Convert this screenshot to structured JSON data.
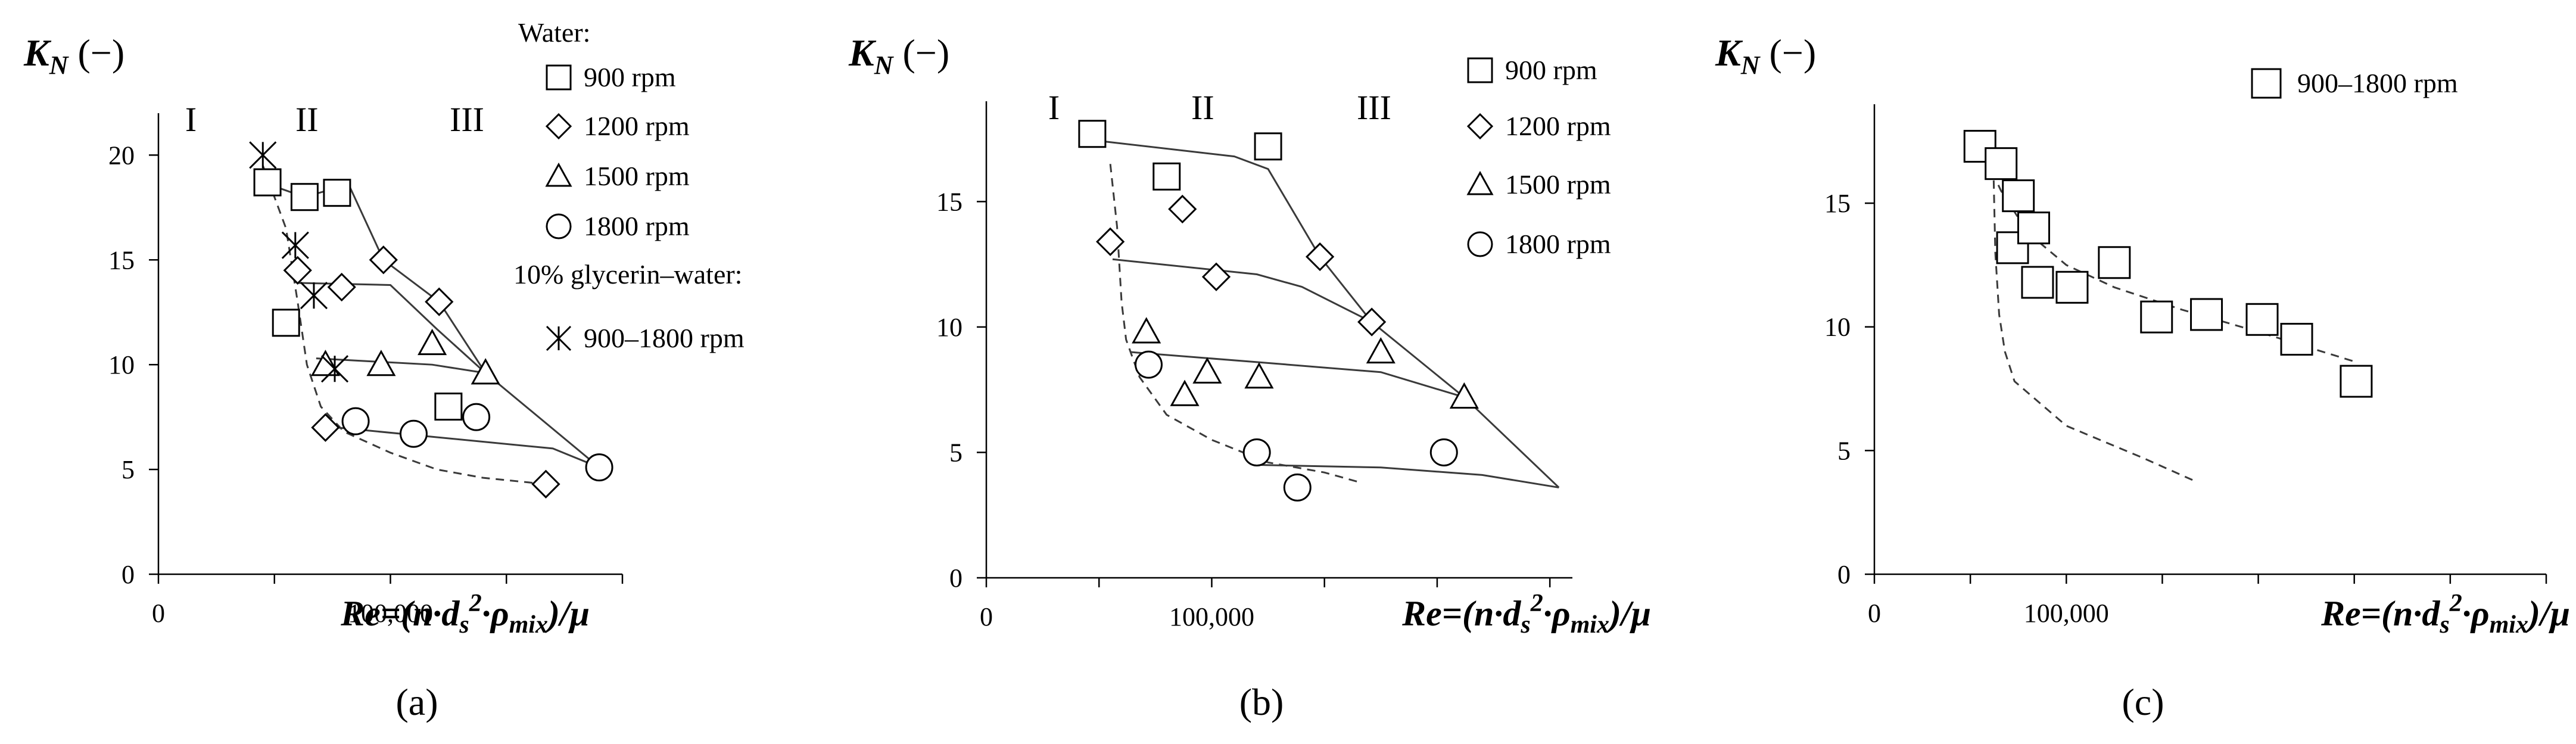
{
  "figure": {
    "panel_labels": [
      "(a)",
      "(b)",
      "(c)"
    ],
    "y_label": "K",
    "y_label_subscript": "N",
    "y_label_unit": " (−)",
    "x_label_parts": [
      "Re=(n·d",
      "s",
      "2",
      "·ρ",
      "mix",
      ")/μ"
    ]
  },
  "chart_data": [
    {
      "type": "scatter",
      "title": "",
      "xlim": [
        0,
        200000
      ],
      "ylim": [
        0,
        22
      ],
      "x_tick_labels": [
        {
          "value": 0,
          "label": "0"
        },
        {
          "value": 100000,
          "label": "100,000"
        }
      ],
      "y_tick_labels": [
        {
          "value": 0,
          "label": "0"
        },
        {
          "value": 5,
          "label": "5"
        },
        {
          "value": 10,
          "label": "10"
        },
        {
          "value": 15,
          "label": "15"
        },
        {
          "value": 20,
          "label": "20"
        }
      ],
      "x_ticks_minor": [
        0,
        50000,
        100000,
        150000,
        200000
      ],
      "zones": [
        {
          "label": "I",
          "x": 14000,
          "y": 22
        },
        {
          "label": "II",
          "x": 64000,
          "y": 22
        },
        {
          "label": "III",
          "x": 133000,
          "y": 22
        }
      ],
      "legend_header_1": "Water:",
      "legend_header_2": "10% glycerin–water:",
      "series": [
        {
          "name": "900 rpm",
          "marker": "square",
          "points": [
            [
              47000,
              18.7
            ],
            [
              63000,
              18.0
            ],
            [
              77000,
              18.2
            ],
            [
              55000,
              12.0
            ],
            [
              125000,
              8.0
            ]
          ]
        },
        {
          "name": "1200 rpm",
          "marker": "diamond",
          "points": [
            [
              60000,
              14.5
            ],
            [
              79000,
              13.7
            ],
            [
              97000,
              15.0
            ],
            [
              121000,
              13.0
            ],
            [
              72000,
              7.0
            ],
            [
              167000,
              4.3
            ]
          ]
        },
        {
          "name": "1500 rpm",
          "marker": "triangle",
          "points": [
            [
              72000,
              10.0
            ],
            [
              96000,
              10.0
            ],
            [
              118000,
              11.0
            ],
            [
              141000,
              9.6
            ]
          ]
        },
        {
          "name": "1800 rpm",
          "marker": "circle",
          "points": [
            [
              85000,
              7.3
            ],
            [
              110000,
              6.7
            ],
            [
              137000,
              7.5
            ],
            [
              190000,
              5.1
            ]
          ]
        },
        {
          "name": "900–1800 rpm",
          "marker": "asterisk",
          "points": [
            [
              45000,
              20.0
            ],
            [
              59000,
              15.7
            ],
            [
              67000,
              13.3
            ],
            [
              76000,
              9.8
            ]
          ]
        }
      ],
      "fit_lines": [
        {
          "style": "solid",
          "points": [
            [
              45000,
              18.7
            ],
            [
              63000,
              18.0
            ],
            [
              82000,
              18.6
            ],
            [
              97000,
              15.0
            ],
            [
              121000,
              13.0
            ],
            [
              141000,
              9.6
            ],
            [
              190000,
              5.1
            ]
          ]
        },
        {
          "style": "solid",
          "points": [
            [
              60000,
              13.9
            ],
            [
              100000,
              13.8
            ],
            [
              120000,
              11.7
            ],
            [
              141000,
              9.6
            ]
          ]
        },
        {
          "style": "solid",
          "points": [
            [
              68000,
              10.3
            ],
            [
              118000,
              10.0
            ],
            [
              141000,
              9.6
            ]
          ]
        },
        {
          "style": "solid",
          "points": [
            [
              77000,
              7.0
            ],
            [
              170000,
              6.0
            ],
            [
              190000,
              5.1
            ]
          ]
        },
        {
          "style": "dashed",
          "points": [
            [
              45000,
              19.5
            ],
            [
              55000,
              16.5
            ],
            [
              60000,
              13.0
            ],
            [
              64000,
              10.0
            ],
            [
              70000,
              8.0
            ],
            [
              80000,
              6.8
            ],
            [
              100000,
              5.8
            ],
            [
              120000,
              5.0
            ],
            [
              140000,
              4.6
            ],
            [
              167000,
              4.3
            ]
          ]
        }
      ]
    },
    {
      "type": "scatter",
      "title": "",
      "xlim": [
        0,
        260000
      ],
      "ylim": [
        0,
        19
      ],
      "x_tick_labels": [
        {
          "value": 0,
          "label": "0"
        },
        {
          "value": 100000,
          "label": "100,000"
        }
      ],
      "y_tick_labels": [
        {
          "value": 0,
          "label": "0"
        },
        {
          "value": 5,
          "label": "5"
        },
        {
          "value": 10,
          "label": "10"
        },
        {
          "value": 15,
          "label": "15"
        }
      ],
      "x_ticks_minor": [
        0,
        50000,
        100000,
        150000,
        200000,
        250000
      ],
      "zones": [
        {
          "label": "I",
          "x": 30000,
          "y": 19
        },
        {
          "label": "II",
          "x": 96000,
          "y": 19
        },
        {
          "label": "III",
          "x": 172000,
          "y": 19
        }
      ],
      "series": [
        {
          "name": "900 rpm",
          "marker": "square",
          "points": [
            [
              47000,
              17.7
            ],
            [
              80000,
              16.0
            ],
            [
              125000,
              17.2
            ]
          ]
        },
        {
          "name": "1200 rpm",
          "marker": "diamond",
          "points": [
            [
              55000,
              13.4
            ],
            [
              87000,
              14.7
            ],
            [
              102000,
              12.0
            ],
            [
              148000,
              12.8
            ],
            [
              171000,
              10.2
            ]
          ]
        },
        {
          "name": "1500 rpm",
          "marker": "triangle",
          "points": [
            [
              71000,
              9.8
            ],
            [
              98000,
              8.2
            ],
            [
              121000,
              8.0
            ],
            [
              175000,
              9.0
            ],
            [
              212000,
              7.2
            ],
            [
              88000,
              7.3
            ]
          ]
        },
        {
          "name": "1800 rpm",
          "marker": "circle",
          "points": [
            [
              72000,
              8.5
            ],
            [
              120000,
              5.0
            ],
            [
              138000,
              3.6
            ],
            [
              203000,
              5.0
            ]
          ]
        }
      ],
      "fit_lines": [
        {
          "style": "solid",
          "points": [
            [
              52000,
              17.4
            ],
            [
              110000,
              16.8
            ],
            [
              125000,
              16.3
            ],
            [
              148000,
              12.8
            ],
            [
              171000,
              10.2
            ],
            [
              212000,
              7.2
            ],
            [
              254000,
              3.6
            ]
          ]
        },
        {
          "style": "solid",
          "points": [
            [
              56000,
              12.7
            ],
            [
              120000,
              12.1
            ],
            [
              140000,
              11.6
            ],
            [
              171000,
              10.2
            ]
          ]
        },
        {
          "style": "solid",
          "points": [
            [
              64000,
              9.0
            ],
            [
              120000,
              8.6
            ],
            [
              175000,
              8.2
            ],
            [
              212000,
              7.2
            ]
          ]
        },
        {
          "style": "solid",
          "points": [
            [
              121000,
              4.5
            ],
            [
              175000,
              4.4
            ],
            [
              220000,
              4.1
            ],
            [
              254000,
              3.6
            ]
          ]
        },
        {
          "style": "dashed",
          "points": [
            [
              55000,
              16.5
            ],
            [
              58000,
              14.0
            ],
            [
              60000,
              11.0
            ],
            [
              62000,
              9.5
            ],
            [
              68000,
              8.0
            ],
            [
              80000,
              6.5
            ],
            [
              100000,
              5.5
            ],
            [
              125000,
              4.6
            ],
            [
              150000,
              4.2
            ],
            [
              166000,
              3.8
            ]
          ]
        }
      ]
    },
    {
      "type": "scatter",
      "title": "",
      "xlim": [
        0,
        350000
      ],
      "ylim": [
        0,
        19
      ],
      "x_tick_labels": [
        {
          "value": 0,
          "label": "0"
        },
        {
          "value": 100000,
          "label": "100,000"
        }
      ],
      "y_tick_labels": [
        {
          "value": 0,
          "label": "0"
        },
        {
          "value": 5,
          "label": "5"
        },
        {
          "value": 10,
          "label": "10"
        },
        {
          "value": 15,
          "label": "15"
        }
      ],
      "x_ticks_minor": [
        0,
        50000,
        100000,
        150000,
        200000,
        250000,
        300000,
        350000
      ],
      "zones": [],
      "series": [
        {
          "name": "900–1800 rpm",
          "marker": "square",
          "points": [
            [
              55000,
              17.3
            ],
            [
              66000,
              16.6
            ],
            [
              75000,
              15.3
            ],
            [
              72000,
              13.2
            ],
            [
              83000,
              14.0
            ],
            [
              85000,
              11.8
            ],
            [
              103000,
              11.6
            ],
            [
              125000,
              12.6
            ],
            [
              147000,
              10.4
            ],
            [
              173000,
              10.5
            ],
            [
              202000,
              10.3
            ],
            [
              220000,
              9.5
            ],
            [
              251000,
              7.8
            ]
          ]
        }
      ],
      "fit_lines": [
        {
          "style": "dashed",
          "points": [
            [
              55000,
              17.3
            ],
            [
              66000,
              15.5
            ],
            [
              80000,
              13.8
            ],
            [
              100000,
              12.5
            ],
            [
              125000,
              11.6
            ],
            [
              160000,
              10.7
            ],
            [
              200000,
              9.8
            ],
            [
              250000,
              8.6
            ]
          ]
        },
        {
          "style": "dashed",
          "points": [
            [
              62000,
              16.5
            ],
            [
              63000,
              13.0
            ],
            [
              65000,
              10.5
            ],
            [
              68000,
              9.0
            ],
            [
              73000,
              7.8
            ],
            [
              100000,
              6.0
            ],
            [
              140000,
              4.7
            ],
            [
              166000,
              3.8
            ]
          ]
        }
      ]
    }
  ]
}
